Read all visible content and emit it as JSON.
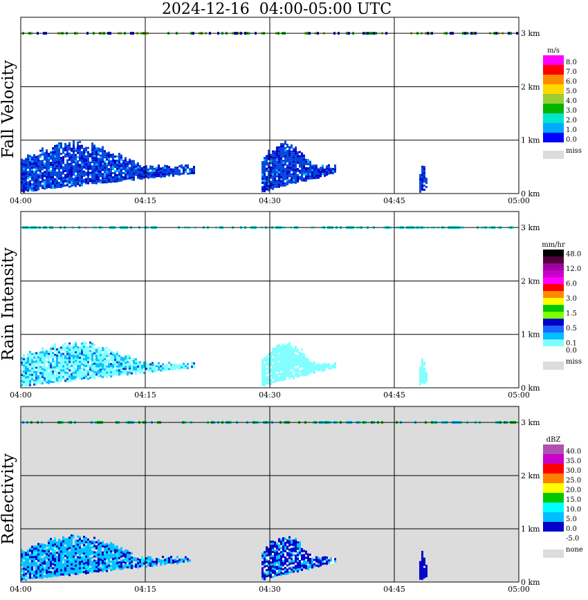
{
  "title": "2024-12-16  04:00-05:00 UTC",
  "colors": {
    "missing": "#dcdcdc",
    "grid": "#000000"
  },
  "chart_data": [
    {
      "type": "heatmap",
      "ylabel": "Fall Velocity",
      "x_ticks": [
        "04:00",
        "04:15",
        "04:30",
        "04:45",
        "05:00"
      ],
      "y_ticks": [
        "0 km",
        "1 km",
        "2 km",
        "3 km"
      ],
      "xlim_minutes": [
        0,
        60
      ],
      "ylim_km": [
        0,
        3.3
      ],
      "background": "#ffffff",
      "colorbar": {
        "unit": "m/s",
        "labels": [
          "8.0",
          "7.0",
          "6.0",
          "5.0",
          "4.0",
          "3.0",
          "2.0",
          "1.0",
          "0.0"
        ],
        "colors": [
          "#ff00ff",
          "#ff0000",
          "#ff8c00",
          "#ffd700",
          "#9acd32",
          "#00b400",
          "#00e6c8",
          "#00aaff",
          "#0000ff"
        ],
        "missing_label": "miss"
      },
      "echoes": [
        {
          "t0": 0.0,
          "t1": 21.0,
          "h_top": 1.0,
          "c1": "#0046dc",
          "c2": "#0000c8",
          "c3": "#00b4ff"
        },
        {
          "t0": 29.0,
          "t1": 38.0,
          "h_top": 1.0,
          "c1": "#0046dc",
          "c2": "#0000c8",
          "c3": "#00b4ff"
        },
        {
          "t0": 48.0,
          "t1": 49.0,
          "h_top": 0.6,
          "c1": "#0046dc",
          "c2": "#0000c8",
          "c3": "#0046dc"
        }
      ],
      "top_band": {
        "h": 3.0,
        "colors": [
          "#00b400",
          "#9acd32",
          "#0000c8"
        ]
      }
    },
    {
      "type": "heatmap",
      "ylabel": "Rain Intensity",
      "x_ticks": [
        "04:00",
        "04:15",
        "04:30",
        "04:45",
        "05:00"
      ],
      "y_ticks": [
        "0 km",
        "1 km",
        "2 km",
        "3 km"
      ],
      "xlim_minutes": [
        0,
        60
      ],
      "ylim_km": [
        0,
        3.3
      ],
      "background": "#ffffff",
      "colorbar": {
        "unit": "mm/hr",
        "labels": [
          "48.0",
          "",
          "12.0",
          "",
          "6.0",
          "",
          "3.0",
          "",
          "1.5",
          "",
          "0.5",
          "",
          "0.1",
          "0.0"
        ],
        "colors": [
          "#000000",
          "#50003c",
          "#a000a0",
          "#c800c8",
          "#ff00ff",
          "#ff0000",
          "#ff8c00",
          "#ffff00",
          "#00c800",
          "#7fff00",
          "#0000c8",
          "#1e64ff",
          "#00bfff",
          "#7fffff",
          "#ffffff"
        ],
        "missing_label": "miss"
      },
      "echoes": [
        {
          "t0": 0.0,
          "t1": 21.0,
          "h_top": 0.9,
          "c1": "#7fffff",
          "c2": "#00bfff",
          "c3": "#1e3cc8"
        },
        {
          "t0": 29.0,
          "t1": 38.0,
          "h_top": 0.9,
          "c1": "#7fffff",
          "c2": "#7fffff",
          "c3": "#7fffff"
        },
        {
          "t0": 48.0,
          "t1": 49.0,
          "h_top": 0.6,
          "c1": "#7fffff",
          "c2": "#7fffff",
          "c3": "#7fffff"
        }
      ],
      "top_band": {
        "h": 3.0,
        "colors": [
          "#00e6e6",
          "#7fffff",
          "#00e6e6"
        ]
      }
    },
    {
      "type": "heatmap",
      "ylabel": "Reflectivity",
      "x_ticks": [
        "04:00",
        "04:15",
        "04:30",
        "04:45",
        "05:00"
      ],
      "y_ticks": [
        "0 km",
        "1 km",
        "2 km",
        "3 km"
      ],
      "xlim_minutes": [
        0,
        60
      ],
      "ylim_km": [
        0,
        3.3
      ],
      "background": "#dcdcdc",
      "colorbar": {
        "unit": "dBZ",
        "labels": [
          "40.0",
          "35.0",
          "30.0",
          "25.0",
          "20.0",
          "15.0",
          "10.0",
          "5.0",
          "0.0",
          "-5.0"
        ],
        "colors": [
          "#b050b0",
          "#c800c8",
          "#ff0000",
          "#ff7f00",
          "#ffff00",
          "#00c800",
          "#00ffff",
          "#00bfff",
          "#0000c8",
          "#ffffff"
        ],
        "missing_label": "none"
      },
      "echoes": [
        {
          "t0": 0.0,
          "t1": 20.5,
          "h_top": 0.9,
          "c1": "#00bfff",
          "c2": "#0000c8",
          "c3": "#00ffff"
        },
        {
          "t0": 29.0,
          "t1": 38.0,
          "h_top": 0.9,
          "c1": "#0000c8",
          "c2": "#00bfff",
          "c3": "#ffffff"
        },
        {
          "t0": 48.0,
          "t1": 49.0,
          "h_top": 0.6,
          "c1": "#0000c8",
          "c2": "#0000c8",
          "c3": "#0000c8"
        }
      ],
      "top_band": {
        "h": 3.0,
        "colors": [
          "#00b400",
          "#00e6c8",
          "#00b4ff"
        ]
      }
    }
  ]
}
